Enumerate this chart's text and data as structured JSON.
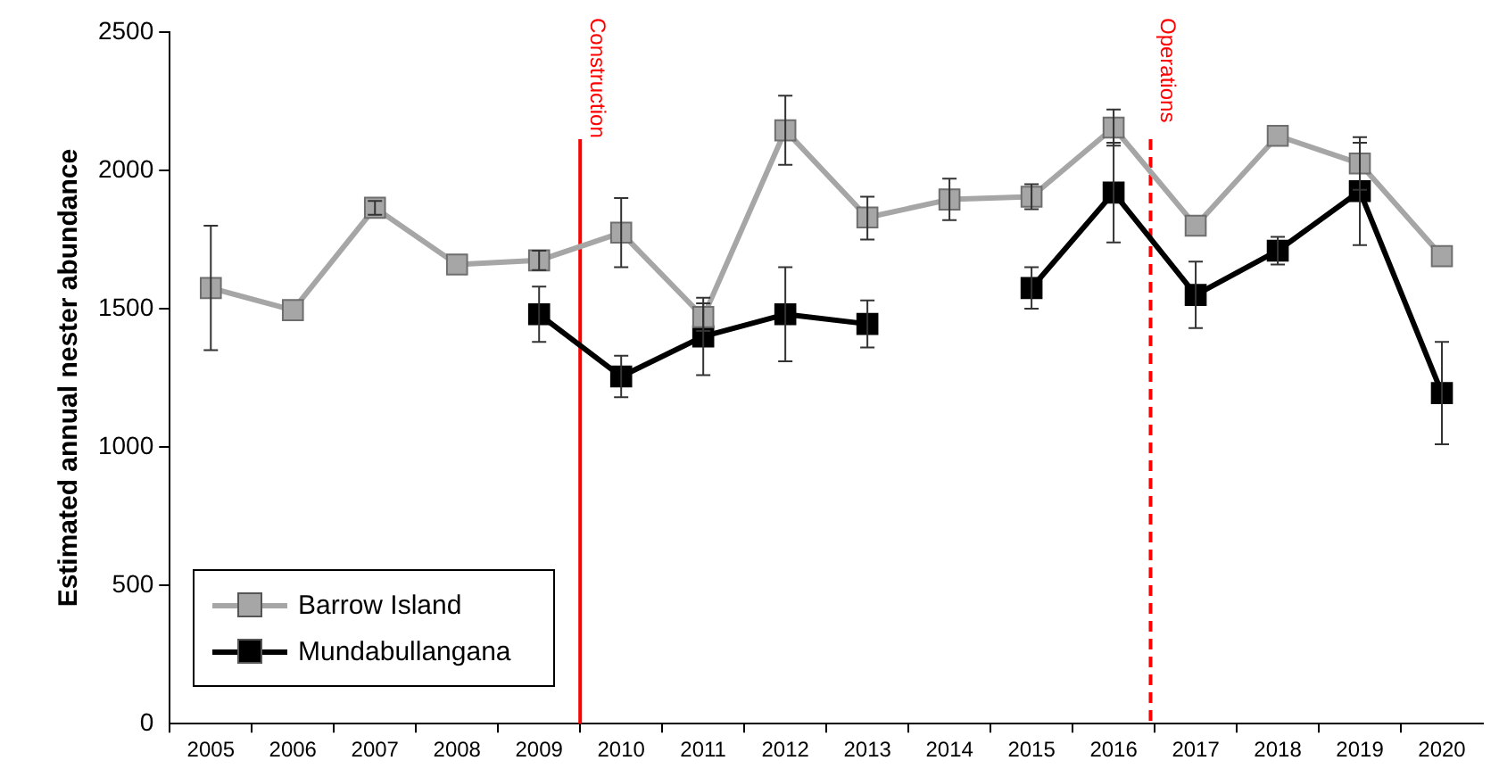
{
  "chart_data": {
    "type": "line",
    "ylabel": "Estimated annual nester abundance",
    "x": [
      2005,
      2006,
      2007,
      2008,
      2009,
      2010,
      2011,
      2012,
      2013,
      2014,
      2015,
      2016,
      2017,
      2018,
      2019,
      2020
    ],
    "series": [
      {
        "name": "Barrow Island",
        "color": "#a6a6a6",
        "values": [
          1575,
          1495,
          1865,
          1660,
          1675,
          1775,
          1470,
          2145,
          1830,
          1895,
          1905,
          2155,
          1800,
          2125,
          2025,
          1690
        ],
        "errors": [
          [
            1350,
            1800
          ],
          null,
          [
            1840,
            1890
          ],
          null,
          [
            1640,
            1710
          ],
          [
            1650,
            1900
          ],
          [
            1420,
            1540
          ],
          [
            2020,
            2270
          ],
          [
            1750,
            1905
          ],
          [
            1820,
            1970
          ],
          [
            1860,
            1950
          ],
          [
            2090,
            2220
          ],
          null,
          null,
          [
            1930,
            2120
          ],
          null
        ]
      },
      {
        "name": "Mundabullangana",
        "color": "#000000",
        "values": [
          null,
          null,
          null,
          null,
          1480,
          1255,
          1400,
          1480,
          1445,
          null,
          1575,
          1920,
          1550,
          1710,
          1925,
          1195
        ],
        "errors": [
          null,
          null,
          null,
          null,
          [
            1380,
            1580
          ],
          [
            1180,
            1330
          ],
          [
            1260,
            1520
          ],
          [
            1310,
            1650
          ],
          [
            1360,
            1530
          ],
          null,
          [
            1500,
            1650
          ],
          [
            1740,
            2100
          ],
          [
            1430,
            1670
          ],
          [
            1660,
            1760
          ],
          [
            1730,
            2100
          ],
          [
            1010,
            1380
          ]
        ]
      }
    ],
    "xlim": [
      2004.5,
      2020.5
    ],
    "xticks": [
      {
        "value": 2004.5,
        "label": null
      },
      2005,
      {
        "value": 2005.5,
        "label": null
      },
      2006,
      {
        "value": 2006.5,
        "label": null
      },
      2007,
      {
        "value": 2007.5,
        "label": null
      },
      2008,
      {
        "value": 2008.5,
        "label": null
      },
      2009,
      {
        "value": 2009.5,
        "label": null
      },
      2010,
      {
        "value": 2010.5,
        "label": null
      },
      2011,
      {
        "value": 2011.5,
        "label": null
      },
      2012,
      {
        "value": 2012.5,
        "label": null
      },
      2013,
      {
        "value": 2013.5,
        "label": null
      },
      2014,
      {
        "value": 2014.5,
        "label": null
      },
      2015,
      {
        "value": 2015.5,
        "label": null
      },
      2016,
      {
        "value": 2016.5,
        "label": null
      },
      2017,
      {
        "value": 2017.5,
        "label": null
      },
      2018,
      {
        "value": 2018.5,
        "label": null
      },
      2019,
      {
        "value": 2019.5,
        "label": null
      },
      2020
    ],
    "ylim": [
      0,
      2500
    ],
    "yticks": [
      0,
      500,
      1000,
      1500,
      2000,
      2500
    ],
    "ref_lines": [
      {
        "axis": "x",
        "value": 2009.5,
        "label": "Construction",
        "color": "#ff0000",
        "line_style": "solid"
      },
      {
        "axis": "x",
        "value": 2016.45,
        "label": "Operations",
        "color": "#ff0000",
        "line_style": "dashed"
      }
    ],
    "grid": false,
    "legend": "bottom left",
    "marker": "square",
    "line_style": "solid"
  }
}
